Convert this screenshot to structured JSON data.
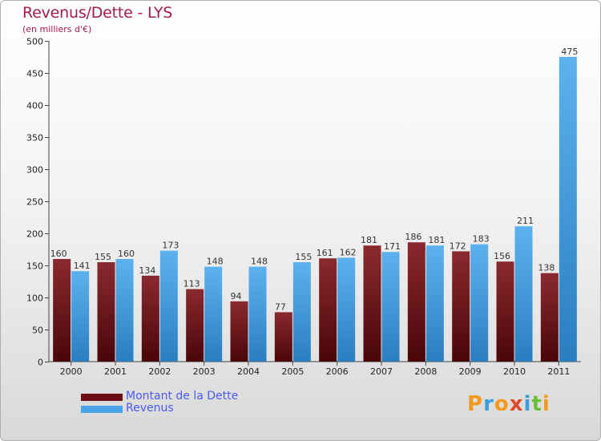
{
  "chart_data": {
    "type": "bar",
    "title": "Revenus/Dette - LYS",
    "subtitle": "(en milliers d'€)",
    "xlabel": "",
    "ylabel": "",
    "ylim": [
      0,
      500
    ],
    "yticks": [
      0,
      50,
      100,
      150,
      200,
      250,
      300,
      350,
      400,
      450,
      500
    ],
    "grid": false,
    "categories": [
      "2000",
      "2001",
      "2002",
      "2003",
      "2004",
      "2005",
      "2006",
      "2007",
      "2008",
      "2009",
      "2010",
      "2011"
    ],
    "series": [
      {
        "name": "Montant de la Dette",
        "color": "#7a1218",
        "values": [
          160,
          155,
          134,
          113,
          94,
          77,
          161,
          181,
          186,
          172,
          156,
          138
        ]
      },
      {
        "name": "Revenus",
        "color": "#4aa3e6",
        "values": [
          141,
          160,
          173,
          148,
          148,
          155,
          162,
          171,
          181,
          183,
          211,
          475
        ]
      }
    ],
    "legend_position": "bottom-left"
  },
  "logo": {
    "letters": [
      "P",
      "r",
      "o",
      "x",
      "i",
      "t",
      "i"
    ],
    "colors": [
      "#f39a1e",
      "#3b9ee0",
      "#f39a1e",
      "#e04a2a",
      "#3b9ee0",
      "#6cbf3a",
      "#f39a1e"
    ]
  }
}
